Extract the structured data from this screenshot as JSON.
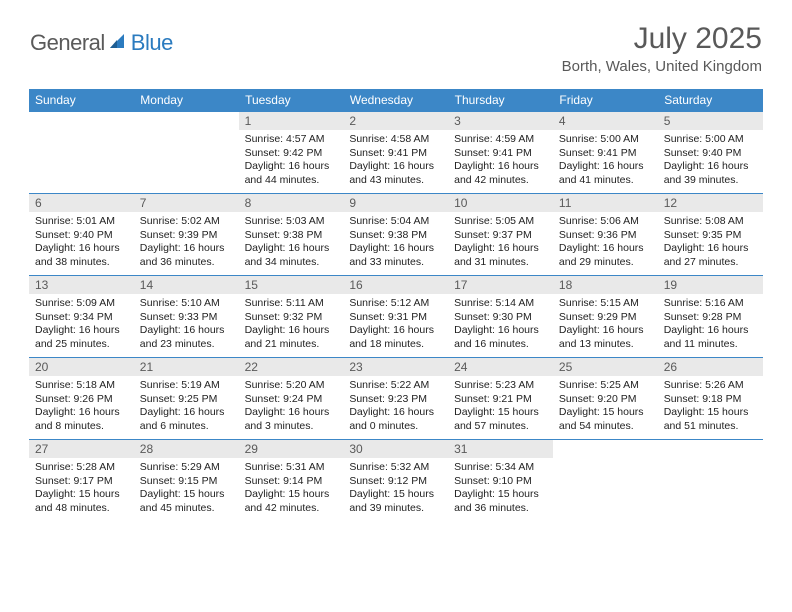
{
  "brand": {
    "general": "General",
    "blue": "Blue"
  },
  "title": "July 2025",
  "location": "Borth, Wales, United Kingdom",
  "colors": {
    "header_bg": "#3c87c7",
    "header_text": "#ffffff",
    "daynum_bg": "#e9e9e9",
    "text": "#5a5a5a",
    "body_text": "#222222",
    "rule": "#3c87c7"
  },
  "weekdays": [
    "Sunday",
    "Monday",
    "Tuesday",
    "Wednesday",
    "Thursday",
    "Friday",
    "Saturday"
  ],
  "weeks": [
    [
      null,
      null,
      {
        "n": "1",
        "sunrise": "Sunrise: 4:57 AM",
        "sunset": "Sunset: 9:42 PM",
        "daylight": "Daylight: 16 hours and 44 minutes."
      },
      {
        "n": "2",
        "sunrise": "Sunrise: 4:58 AM",
        "sunset": "Sunset: 9:41 PM",
        "daylight": "Daylight: 16 hours and 43 minutes."
      },
      {
        "n": "3",
        "sunrise": "Sunrise: 4:59 AM",
        "sunset": "Sunset: 9:41 PM",
        "daylight": "Daylight: 16 hours and 42 minutes."
      },
      {
        "n": "4",
        "sunrise": "Sunrise: 5:00 AM",
        "sunset": "Sunset: 9:41 PM",
        "daylight": "Daylight: 16 hours and 41 minutes."
      },
      {
        "n": "5",
        "sunrise": "Sunrise: 5:00 AM",
        "sunset": "Sunset: 9:40 PM",
        "daylight": "Daylight: 16 hours and 39 minutes."
      }
    ],
    [
      {
        "n": "6",
        "sunrise": "Sunrise: 5:01 AM",
        "sunset": "Sunset: 9:40 PM",
        "daylight": "Daylight: 16 hours and 38 minutes."
      },
      {
        "n": "7",
        "sunrise": "Sunrise: 5:02 AM",
        "sunset": "Sunset: 9:39 PM",
        "daylight": "Daylight: 16 hours and 36 minutes."
      },
      {
        "n": "8",
        "sunrise": "Sunrise: 5:03 AM",
        "sunset": "Sunset: 9:38 PM",
        "daylight": "Daylight: 16 hours and 34 minutes."
      },
      {
        "n": "9",
        "sunrise": "Sunrise: 5:04 AM",
        "sunset": "Sunset: 9:38 PM",
        "daylight": "Daylight: 16 hours and 33 minutes."
      },
      {
        "n": "10",
        "sunrise": "Sunrise: 5:05 AM",
        "sunset": "Sunset: 9:37 PM",
        "daylight": "Daylight: 16 hours and 31 minutes."
      },
      {
        "n": "11",
        "sunrise": "Sunrise: 5:06 AM",
        "sunset": "Sunset: 9:36 PM",
        "daylight": "Daylight: 16 hours and 29 minutes."
      },
      {
        "n": "12",
        "sunrise": "Sunrise: 5:08 AM",
        "sunset": "Sunset: 9:35 PM",
        "daylight": "Daylight: 16 hours and 27 minutes."
      }
    ],
    [
      {
        "n": "13",
        "sunrise": "Sunrise: 5:09 AM",
        "sunset": "Sunset: 9:34 PM",
        "daylight": "Daylight: 16 hours and 25 minutes."
      },
      {
        "n": "14",
        "sunrise": "Sunrise: 5:10 AM",
        "sunset": "Sunset: 9:33 PM",
        "daylight": "Daylight: 16 hours and 23 minutes."
      },
      {
        "n": "15",
        "sunrise": "Sunrise: 5:11 AM",
        "sunset": "Sunset: 9:32 PM",
        "daylight": "Daylight: 16 hours and 21 minutes."
      },
      {
        "n": "16",
        "sunrise": "Sunrise: 5:12 AM",
        "sunset": "Sunset: 9:31 PM",
        "daylight": "Daylight: 16 hours and 18 minutes."
      },
      {
        "n": "17",
        "sunrise": "Sunrise: 5:14 AM",
        "sunset": "Sunset: 9:30 PM",
        "daylight": "Daylight: 16 hours and 16 minutes."
      },
      {
        "n": "18",
        "sunrise": "Sunrise: 5:15 AM",
        "sunset": "Sunset: 9:29 PM",
        "daylight": "Daylight: 16 hours and 13 minutes."
      },
      {
        "n": "19",
        "sunrise": "Sunrise: 5:16 AM",
        "sunset": "Sunset: 9:28 PM",
        "daylight": "Daylight: 16 hours and 11 minutes."
      }
    ],
    [
      {
        "n": "20",
        "sunrise": "Sunrise: 5:18 AM",
        "sunset": "Sunset: 9:26 PM",
        "daylight": "Daylight: 16 hours and 8 minutes."
      },
      {
        "n": "21",
        "sunrise": "Sunrise: 5:19 AM",
        "sunset": "Sunset: 9:25 PM",
        "daylight": "Daylight: 16 hours and 6 minutes."
      },
      {
        "n": "22",
        "sunrise": "Sunrise: 5:20 AM",
        "sunset": "Sunset: 9:24 PM",
        "daylight": "Daylight: 16 hours and 3 minutes."
      },
      {
        "n": "23",
        "sunrise": "Sunrise: 5:22 AM",
        "sunset": "Sunset: 9:23 PM",
        "daylight": "Daylight: 16 hours and 0 minutes."
      },
      {
        "n": "24",
        "sunrise": "Sunrise: 5:23 AM",
        "sunset": "Sunset: 9:21 PM",
        "daylight": "Daylight: 15 hours and 57 minutes."
      },
      {
        "n": "25",
        "sunrise": "Sunrise: 5:25 AM",
        "sunset": "Sunset: 9:20 PM",
        "daylight": "Daylight: 15 hours and 54 minutes."
      },
      {
        "n": "26",
        "sunrise": "Sunrise: 5:26 AM",
        "sunset": "Sunset: 9:18 PM",
        "daylight": "Daylight: 15 hours and 51 minutes."
      }
    ],
    [
      {
        "n": "27",
        "sunrise": "Sunrise: 5:28 AM",
        "sunset": "Sunset: 9:17 PM",
        "daylight": "Daylight: 15 hours and 48 minutes."
      },
      {
        "n": "28",
        "sunrise": "Sunrise: 5:29 AM",
        "sunset": "Sunset: 9:15 PM",
        "daylight": "Daylight: 15 hours and 45 minutes."
      },
      {
        "n": "29",
        "sunrise": "Sunrise: 5:31 AM",
        "sunset": "Sunset: 9:14 PM",
        "daylight": "Daylight: 15 hours and 42 minutes."
      },
      {
        "n": "30",
        "sunrise": "Sunrise: 5:32 AM",
        "sunset": "Sunset: 9:12 PM",
        "daylight": "Daylight: 15 hours and 39 minutes."
      },
      {
        "n": "31",
        "sunrise": "Sunrise: 5:34 AM",
        "sunset": "Sunset: 9:10 PM",
        "daylight": "Daylight: 15 hours and 36 minutes."
      },
      null,
      null
    ]
  ]
}
